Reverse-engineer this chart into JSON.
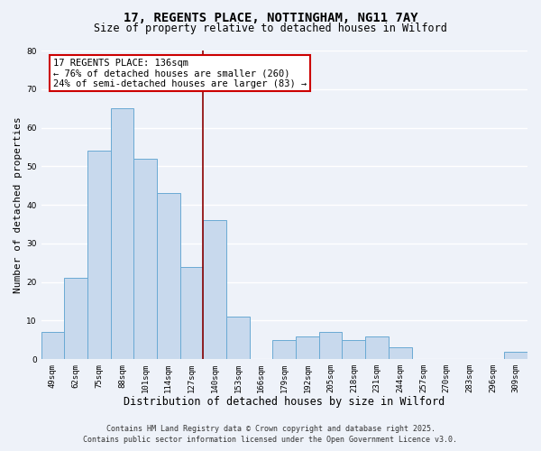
{
  "title": "17, REGENTS PLACE, NOTTINGHAM, NG11 7AY",
  "subtitle": "Size of property relative to detached houses in Wilford",
  "xlabel": "Distribution of detached houses by size in Wilford",
  "ylabel": "Number of detached properties",
  "bar_labels": [
    "49sqm",
    "62sqm",
    "75sqm",
    "88sqm",
    "101sqm",
    "114sqm",
    "127sqm",
    "140sqm",
    "153sqm",
    "166sqm",
    "179sqm",
    "192sqm",
    "205sqm",
    "218sqm",
    "231sqm",
    "244sqm",
    "257sqm",
    "270sqm",
    "283sqm",
    "296sqm",
    "309sqm"
  ],
  "bar_values": [
    7,
    21,
    54,
    65,
    52,
    43,
    24,
    36,
    11,
    0,
    5,
    6,
    7,
    5,
    6,
    3,
    0,
    0,
    0,
    0,
    2
  ],
  "bar_color": "#c8d9ed",
  "bar_edgecolor": "#6aaad4",
  "bar_linewidth": 0.7,
  "vline_index": 7,
  "vline_color": "#8b0000",
  "vline_linewidth": 1.2,
  "ylim": [
    0,
    80
  ],
  "yticks": [
    0,
    10,
    20,
    30,
    40,
    50,
    60,
    70,
    80
  ],
  "annotation_title": "17 REGENTS PLACE: 136sqm",
  "annotation_line1": "← 76% of detached houses are smaller (260)",
  "annotation_line2": "24% of semi-detached houses are larger (83) →",
  "annotation_box_color": "#ffffff",
  "annotation_box_edgecolor": "#cc0000",
  "background_color": "#eef2f9",
  "grid_color": "#ffffff",
  "footer_line1": "Contains HM Land Registry data © Crown copyright and database right 2025.",
  "footer_line2": "Contains public sector information licensed under the Open Government Licence v3.0.",
  "title_fontsize": 10,
  "subtitle_fontsize": 8.5,
  "xlabel_fontsize": 8.5,
  "ylabel_fontsize": 8,
  "tick_fontsize": 6.5,
  "footer_fontsize": 6,
  "annotation_fontsize": 7.5
}
